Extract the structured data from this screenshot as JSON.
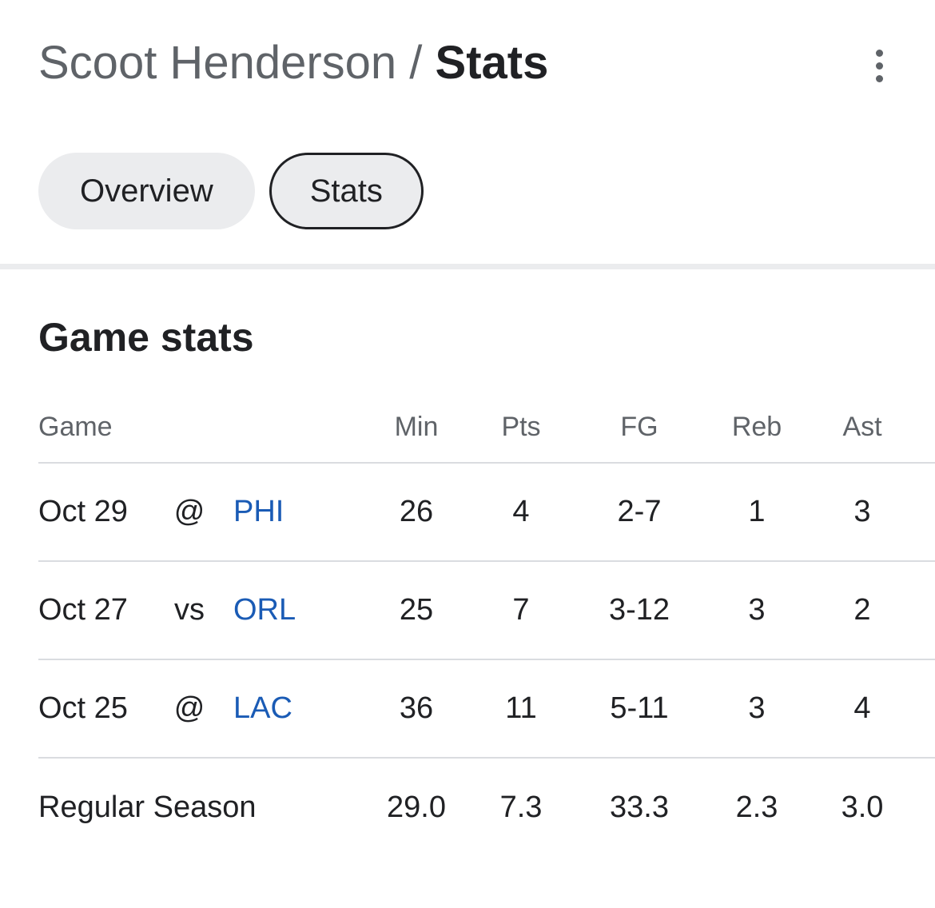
{
  "header": {
    "player": "Scoot Henderson",
    "separator": "/",
    "current": "Stats"
  },
  "menu_icon": "more-vert-icon",
  "tabs": [
    {
      "label": "Overview",
      "active": false
    },
    {
      "label": "Stats",
      "active": true
    }
  ],
  "section": {
    "title": "Game stats"
  },
  "table": {
    "columns": {
      "game": "Game",
      "min": "Min",
      "pts": "Pts",
      "fg": "FG",
      "reb": "Reb",
      "ast": "Ast"
    },
    "rows": [
      {
        "date": "Oct 29",
        "loc": "@",
        "opp": "PHI",
        "min": "26",
        "pts": "4",
        "fg": "2-7",
        "reb": "1",
        "ast": "3"
      },
      {
        "date": "Oct 27",
        "loc": "vs",
        "opp": "ORL",
        "min": "25",
        "pts": "7",
        "fg": "3-12",
        "reb": "3",
        "ast": "2"
      },
      {
        "date": "Oct 25",
        "loc": "@",
        "opp": "LAC",
        "min": "36",
        "pts": "11",
        "fg": "5-11",
        "reb": "3",
        "ast": "4"
      }
    ],
    "totals": {
      "label": "Regular Season",
      "min": "29.0",
      "pts": "7.3",
      "fg": "33.3",
      "reb": "2.3",
      "ast": "3.0"
    }
  },
  "colors": {
    "team_link": "#1a5bb5",
    "tab_bg": "#ebecee",
    "muted_text": "#5f6368"
  }
}
